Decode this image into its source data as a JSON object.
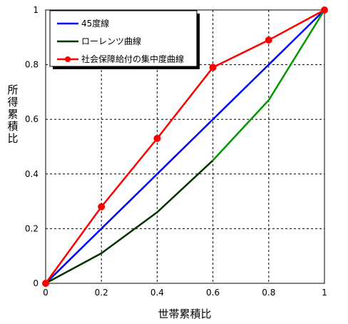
{
  "chart_data": {
    "type": "line",
    "title": "",
    "xlabel": "世帯累積比",
    "ylabel": "所得累積比",
    "xlim": [
      0,
      1
    ],
    "ylim": [
      0,
      1
    ],
    "x_ticks": [
      "0",
      "0.2",
      "0.4",
      "0.6",
      "0.8",
      "1"
    ],
    "y_ticks": [
      "0",
      "0.2",
      "0.4",
      "0.6",
      "0.8",
      "1"
    ],
    "grid": "dashed",
    "legend_position": "top-left",
    "series": [
      {
        "name": "45度線",
        "color": "#0000ff",
        "marker": "none",
        "x": [
          0,
          1
        ],
        "y": [
          0,
          1
        ]
      },
      {
        "name": "ローレンツ曲線",
        "color": "#003300",
        "segment_color_right": "#009900",
        "marker": "none",
        "x": [
          0,
          0.2,
          0.4,
          0.6,
          0.8,
          1
        ],
        "y": [
          0,
          0.11,
          0.26,
          0.45,
          0.67,
          1
        ]
      },
      {
        "name": "社会保障給付の集中度曲線",
        "color": "#ff0000",
        "marker": "circle",
        "x": [
          0,
          0.2,
          0.4,
          0.6,
          0.8,
          1
        ],
        "y": [
          0,
          0.28,
          0.53,
          0.79,
          0.89,
          1
        ]
      }
    ]
  }
}
